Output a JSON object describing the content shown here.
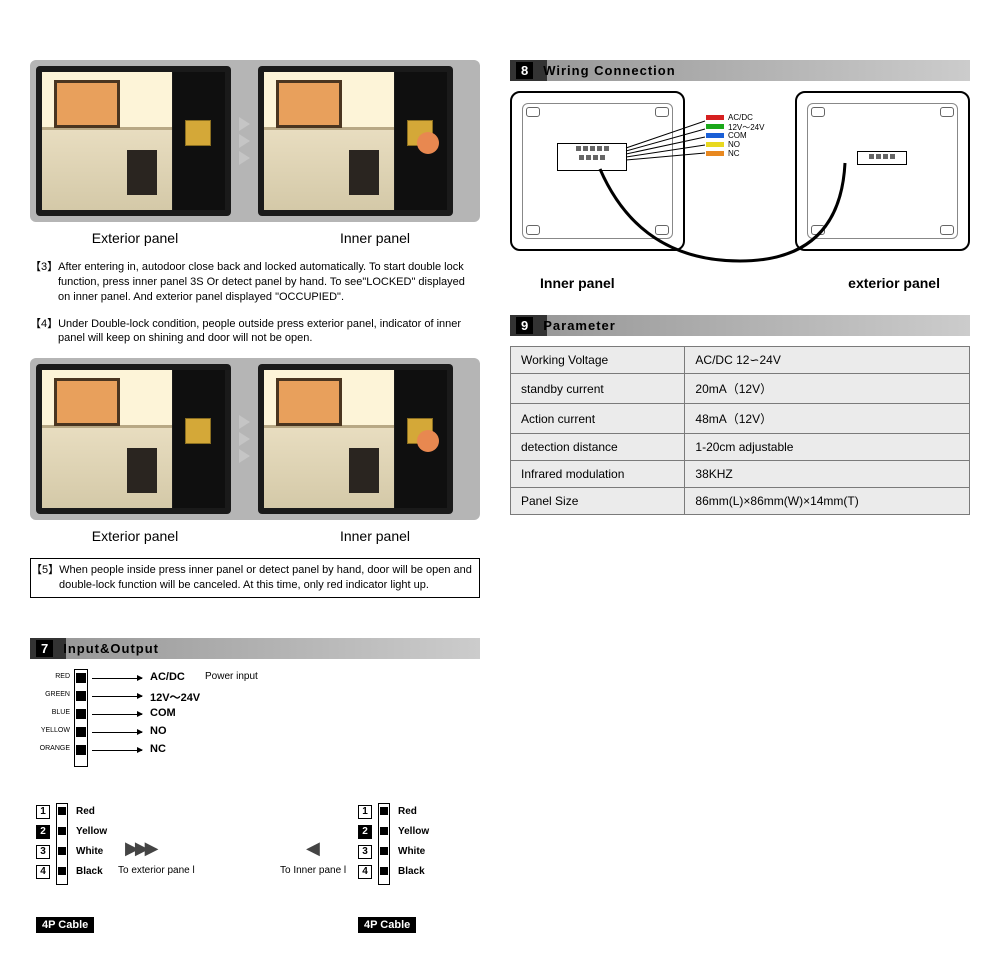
{
  "panels": {
    "exterior_label": "Exterior panel",
    "inner_label": "Inner panel"
  },
  "instructions": {
    "step3": "【3】After entering in,  autodoor  close back and locked  automatically.  To start double lock  function, press  inner  panel  3S  Or  detect panel by hand. To  see\"LOCKED\" displayed on inner panel. And exterior panel displayed \"OCCUPIED\".",
    "step4": "【4】Under Double-lock condition, people outside press exterior panel, indicator of  inner panel will keep on shining and door will not be open.",
    "step5": "【5】When people  inside press inner panel or detect panel by hand, door will be open and double-lock function will be canceled. At this time, only red indicator light up."
  },
  "sections": {
    "s7": {
      "num": "7",
      "title": "Input&Output"
    },
    "s8": {
      "num": "8",
      "title": "Wiring  Connection"
    },
    "s9": {
      "num": "9",
      "title": "Parameter"
    }
  },
  "io": {
    "pins": [
      {
        "color": "RED",
        "label": "AC/DC"
      },
      {
        "color": "GREEN",
        "label": "12V～24V"
      },
      {
        "color": "BLUE",
        "label": "COM"
      },
      {
        "color": "YELLOW",
        "label": "NO"
      },
      {
        "color": "ORANGE",
        "label": "NC"
      }
    ],
    "power_input": "Power input"
  },
  "cable": {
    "pins": [
      "Red",
      "Yellow",
      "White",
      "Black"
    ],
    "nums": [
      "1",
      "2",
      "3",
      "4"
    ],
    "tag": "4P Cable",
    "to_ext": "To exterior pane l",
    "to_inn": "To Inner pane l"
  },
  "wiring": {
    "inner_label": "Inner panel",
    "exterior_label": "exterior panel",
    "wires": [
      {
        "color": "#d62020",
        "label": "AC/DC"
      },
      {
        "color": "#1aa81a",
        "label": "12V～24V"
      },
      {
        "color": "#1a5fd6",
        "label": "COM"
      },
      {
        "color": "#e8d820",
        "label": "NO"
      },
      {
        "color": "#e88820",
        "label": "NC"
      }
    ]
  },
  "parameters": {
    "rows": [
      [
        "Working  Voltage",
        "AC/DC   12∽24V"
      ],
      [
        "standby current",
        "20mA（12V）"
      ],
      [
        "Action current",
        "48mA（12V）"
      ],
      [
        "detection distance",
        "1-20cm  adjustable"
      ],
      [
        "Infrared modulation",
        "38KHZ"
      ],
      [
        "Panel  Size",
        "86mm(L)×86mm(W)×14mm(T)"
      ]
    ]
  }
}
